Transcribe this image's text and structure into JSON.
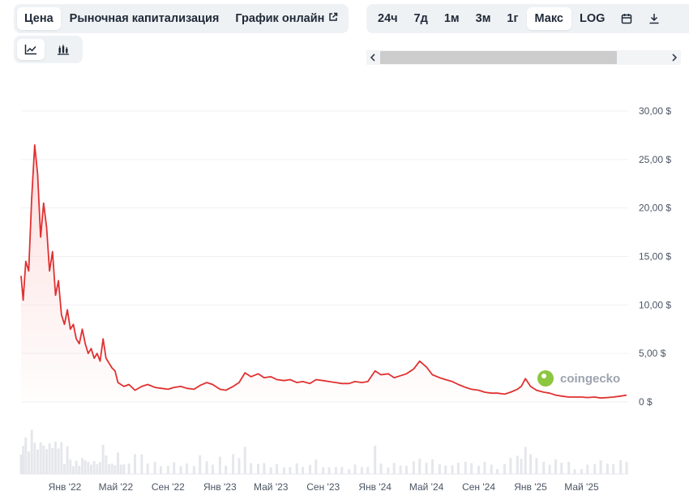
{
  "tabs_left": [
    {
      "label": "Цена",
      "active": true
    },
    {
      "label": "Рыночная капитализация",
      "active": false
    },
    {
      "label": "График онлайн",
      "active": false,
      "external": true
    }
  ],
  "range_tabs": [
    {
      "label": "24ч",
      "active": false
    },
    {
      "label": "7д",
      "active": false
    },
    {
      "label": "1м",
      "active": false
    },
    {
      "label": "3м",
      "active": false
    },
    {
      "label": "1г",
      "active": false
    },
    {
      "label": "Макс",
      "active": true
    },
    {
      "label": "LOG",
      "active": false
    }
  ],
  "icons": {
    "calendar": "calendar-icon",
    "download": "download-icon",
    "line_view": "line-chart-icon",
    "candle_view": "candlestick-icon"
  },
  "watermark": "coingecko",
  "colors": {
    "line": "#e03131",
    "area_top": "#fcd9d9",
    "volume": "#e5e7eb",
    "grid": "#eef0f3",
    "logo_green": "#8dc63f"
  },
  "chart_data": {
    "type": "area",
    "title": "",
    "xlabel": "",
    "ylabel": "",
    "ylim": [
      0,
      30
    ],
    "y_ticks": [
      0,
      5,
      10,
      15,
      20,
      25,
      30
    ],
    "y_tick_labels": [
      "0 $",
      "5,00 $",
      "10,00 $",
      "15,00 $",
      "20,00 $",
      "25,00 $",
      "30,00 $"
    ],
    "x_tick_labels": [
      "Янв '22",
      "Май '22",
      "Сен '22",
      "Янв '23",
      "Май '23",
      "Сен '23",
      "Янв '24",
      "Май '24",
      "Сен '24",
      "Янв '25",
      "Май '25"
    ],
    "x_tick_dates": [
      "2022-01-01",
      "2022-05-01",
      "2022-09-01",
      "2023-01-01",
      "2023-05-01",
      "2023-09-01",
      "2024-01-01",
      "2024-05-01",
      "2024-09-01",
      "2025-01-01",
      "2025-05-01"
    ],
    "grid": true,
    "series": [
      {
        "x": [
          "2021-09-20",
          "2021-09-25",
          "2021-10-01",
          "2021-10-08",
          "2021-10-15",
          "2021-10-22",
          "2021-10-29",
          "2021-11-05",
          "2021-11-12",
          "2021-11-19",
          "2021-11-26",
          "2021-12-03",
          "2021-12-10",
          "2021-12-17",
          "2021-12-24",
          "2021-12-31",
          "2022-01-07",
          "2022-01-14",
          "2022-01-21",
          "2022-01-28",
          "2022-02-04",
          "2022-02-11",
          "2022-02-18",
          "2022-02-25",
          "2022-03-04",
          "2022-03-11",
          "2022-03-18",
          "2022-03-25",
          "2022-04-01",
          "2022-04-08",
          "2022-04-15",
          "2022-04-22",
          "2022-04-29",
          "2022-05-06",
          "2022-05-13",
          "2022-05-20",
          "2022-06-01",
          "2022-06-15",
          "2022-07-01",
          "2022-07-15",
          "2022-08-01",
          "2022-08-15",
          "2022-09-01",
          "2022-09-15",
          "2022-10-01",
          "2022-10-15",
          "2022-11-01",
          "2022-11-15",
          "2022-12-01",
          "2022-12-15",
          "2023-01-01",
          "2023-01-15",
          "2023-02-01",
          "2023-02-15",
          "2023-03-01",
          "2023-03-15",
          "2023-04-01",
          "2023-04-15",
          "2023-05-01",
          "2023-05-15",
          "2023-06-01",
          "2023-06-15",
          "2023-07-01",
          "2023-07-15",
          "2023-08-01",
          "2023-08-15",
          "2023-09-01",
          "2023-09-15",
          "2023-10-01",
          "2023-10-15",
          "2023-11-01",
          "2023-11-15",
          "2023-12-01",
          "2023-12-15",
          "2024-01-01",
          "2024-01-15",
          "2024-02-01",
          "2024-02-15",
          "2024-03-01",
          "2024-03-15",
          "2024-04-01",
          "2024-04-15",
          "2024-05-01",
          "2024-05-15",
          "2024-06-01",
          "2024-06-15",
          "2024-07-01",
          "2024-07-15",
          "2024-08-01",
          "2024-08-15",
          "2024-09-01",
          "2024-09-15",
          "2024-10-01",
          "2024-10-15",
          "2024-11-01",
          "2024-11-15",
          "2024-12-01",
          "2024-12-10",
          "2024-12-20",
          "2025-01-01",
          "2025-01-15",
          "2025-02-01",
          "2025-02-15",
          "2025-03-01",
          "2025-03-15",
          "2025-04-01",
          "2025-04-15",
          "2025-05-01",
          "2025-05-15",
          "2025-06-01",
          "2025-06-15",
          "2025-07-01",
          "2025-07-15",
          "2025-08-01",
          "2025-08-15"
        ],
        "y": [
          13.0,
          10.5,
          14.5,
          13.5,
          21.0,
          26.5,
          23.5,
          17.0,
          20.5,
          18.0,
          13.5,
          15.5,
          11.0,
          12.5,
          9.0,
          8.0,
          9.5,
          7.5,
          8.0,
          6.5,
          6.0,
          7.5,
          6.0,
          5.0,
          5.5,
          4.5,
          5.0,
          4.2,
          6.5,
          4.5,
          4.0,
          3.5,
          3.2,
          2.0,
          1.8,
          1.6,
          1.8,
          1.2,
          1.6,
          1.8,
          1.5,
          1.4,
          1.3,
          1.5,
          1.6,
          1.4,
          1.3,
          1.7,
          2.0,
          1.8,
          1.3,
          1.2,
          1.6,
          2.0,
          3.0,
          2.6,
          2.9,
          2.5,
          2.6,
          2.3,
          2.2,
          2.3,
          2.0,
          2.1,
          1.9,
          2.3,
          2.2,
          2.1,
          2.0,
          1.9,
          1.9,
          2.1,
          2.0,
          2.1,
          3.2,
          2.8,
          2.9,
          2.5,
          2.7,
          2.9,
          3.4,
          4.2,
          3.6,
          2.8,
          2.5,
          2.3,
          2.1,
          1.8,
          1.5,
          1.3,
          1.2,
          1.0,
          0.9,
          0.9,
          0.8,
          1.0,
          1.3,
          1.6,
          2.4,
          1.6,
          1.2,
          1.0,
          0.9,
          0.7,
          0.6,
          0.5,
          0.5,
          0.5,
          0.45,
          0.5,
          0.4,
          0.45,
          0.5,
          0.6,
          0.7
        ]
      }
    ]
  }
}
